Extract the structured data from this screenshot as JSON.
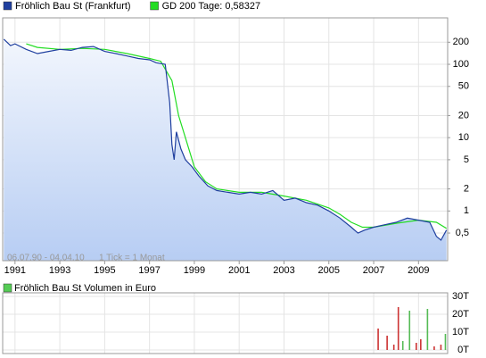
{
  "chart_data": [
    {
      "type": "line",
      "log_scale": true,
      "grid": true,
      "annotations": [
        "06.07.90 - 04.04.10",
        "1 Tick = 1 Monat"
      ],
      "series": [
        {
          "name": "Fröhlich Bau St (Frankfurt)",
          "color": "#1f3f9f",
          "area": true,
          "x": [
            1990.5,
            1990.8,
            1991,
            1991.5,
            1992,
            1992.5,
            1993,
            1993.5,
            1994,
            1994.5,
            1995,
            1995.5,
            1996,
            1996.5,
            1997,
            1997.3,
            1997.7,
            1997.9,
            1998.0,
            1998.1,
            1998.2,
            1998.4,
            1998.6,
            1998.9,
            1999.2,
            1999.6,
            2000,
            2000.5,
            2001,
            2001.5,
            2002,
            2002.5,
            2003,
            2003.5,
            2004,
            2004.5,
            2005,
            2005.5,
            2006,
            2006.3,
            2006.6,
            2007,
            2007.5,
            2008,
            2008.5,
            2009,
            2009.5,
            2009.8,
            2010,
            2010.25
          ],
          "values": [
            220,
            180,
            190,
            160,
            140,
            150,
            160,
            155,
            170,
            175,
            150,
            140,
            130,
            120,
            115,
            105,
            100,
            30,
            8,
            5,
            12,
            7,
            5,
            4,
            3,
            2.2,
            1.9,
            1.8,
            1.7,
            1.8,
            1.7,
            1.9,
            1.4,
            1.5,
            1.3,
            1.2,
            1.0,
            0.8,
            0.6,
            0.5,
            0.55,
            0.6,
            0.65,
            0.7,
            0.8,
            0.75,
            0.7,
            0.45,
            0.4,
            0.55
          ]
        },
        {
          "name": "GD 200 Tage: 0,58327",
          "color": "#22dd22",
          "x": [
            1991.5,
            1992,
            1993,
            1994,
            1995,
            1996,
            1997,
            1997.5,
            1998,
            1998.3,
            1998.6,
            1999,
            1999.5,
            2000,
            2001,
            2002,
            2003,
            2004,
            2005,
            2005.5,
            2006,
            2006.5,
            2007,
            2008,
            2009,
            2009.8,
            2010.25
          ],
          "values": [
            190,
            170,
            160,
            165,
            160,
            140,
            120,
            110,
            60,
            20,
            10,
            4,
            2.5,
            2.0,
            1.8,
            1.8,
            1.6,
            1.4,
            1.1,
            0.9,
            0.7,
            0.6,
            0.6,
            0.68,
            0.75,
            0.7,
            0.58
          ]
        }
      ],
      "xlim": [
        1990.45,
        2010.3
      ],
      "xticks": [
        1991,
        1993,
        1995,
        1997,
        1999,
        2001,
        2003,
        2005,
        2007,
        2009
      ],
      "ylim": [
        0.21,
        430
      ],
      "yticks": [
        200,
        100,
        50,
        20,
        10,
        5,
        2,
        1,
        {
          "value": 0.5,
          "label": "0,5"
        }
      ]
    },
    {
      "type": "bar",
      "legend": "Fröhlich Bau St Volumen in Euro",
      "legend_color": "#55cc55",
      "x": [
        2007.2,
        2007.6,
        2007.9,
        2008.1,
        2008.3,
        2008.6,
        2008.9,
        2009.1,
        2009.4,
        2009.7,
        2010.0,
        2010.2
      ],
      "values": [
        12000,
        8000,
        3000,
        24000,
        5000,
        22000,
        4000,
        6000,
        23000,
        2000,
        3000,
        9000
      ],
      "colors": [
        "#cc3333",
        "#cc3333",
        "#cc3333",
        "#cc3333",
        "#55bb55",
        "#55bb55",
        "#cc3333",
        "#cc3333",
        "#55bb55",
        "#cc3333",
        "#cc3333",
        "#55bb55"
      ],
      "xlim": [
        1990.45,
        2010.3
      ],
      "ylim": [
        -2000,
        32000
      ],
      "yticks": [
        {
          "value": 30000,
          "label": "30T"
        },
        {
          "value": 20000,
          "label": "20T"
        },
        {
          "value": 10000,
          "label": "10T"
        },
        {
          "value": 0,
          "label": "0T"
        }
      ]
    }
  ]
}
